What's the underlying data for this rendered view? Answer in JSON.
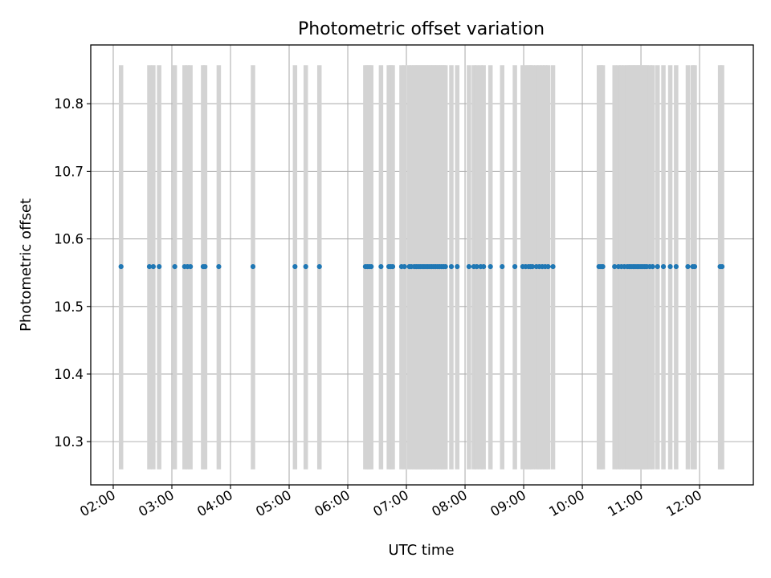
{
  "chart_data": {
    "type": "scatter",
    "title": "Photometric offset variation",
    "xlabel": "UTC time",
    "ylabel": "Photometric offset",
    "xlim": [
      "01:37",
      "12:55"
    ],
    "ylim": [
      10.236,
      10.887
    ],
    "x_ticks": [
      "02:00",
      "03:00",
      "04:00",
      "05:00",
      "06:00",
      "07:00",
      "08:00",
      "09:00",
      "10:00",
      "11:00",
      "12:00"
    ],
    "y_ticks": [
      10.3,
      10.4,
      10.5,
      10.6,
      10.7,
      10.8
    ],
    "grid": true,
    "error_bar_range": [
      10.259,
      10.857
    ],
    "colors": {
      "points": "#1f77b4",
      "error_bars": "#d3d3d3",
      "grid": "#b0b0b0"
    },
    "series": [
      {
        "y": 10.559,
        "x": [
          "02:08",
          "02:37",
          "02:41",
          "02:47",
          "03:03",
          "03:13",
          "03:16",
          "03:19",
          "03:32",
          "03:34",
          "03:48",
          "04:23",
          "05:06",
          "05:17",
          "05:31",
          "06:18",
          "06:20",
          "06:22",
          "06:24",
          "06:34",
          "06:42",
          "06:44",
          "06:46",
          "06:55",
          "06:58",
          "07:03",
          "07:05",
          "07:08",
          "07:10",
          "07:12",
          "07:14",
          "07:16",
          "07:18",
          "07:20",
          "07:22",
          "07:24",
          "07:26",
          "07:28",
          "07:30",
          "07:32",
          "07:34",
          "07:36",
          "07:38",
          "07:40",
          "07:46",
          "07:52",
          "08:04",
          "08:09",
          "08:12",
          "08:16",
          "08:19",
          "08:26",
          "08:38",
          "08:51",
          "08:59",
          "09:02",
          "09:05",
          "09:07",
          "09:09",
          "09:13",
          "09:16",
          "09:19",
          "09:22",
          "09:25",
          "09:30",
          "10:17",
          "10:19",
          "10:21",
          "10:33",
          "10:37",
          "10:40",
          "10:43",
          "10:46",
          "10:48",
          "10:50",
          "10:52",
          "10:54",
          "10:56",
          "10:58",
          "11:00",
          "11:02",
          "11:04",
          "11:06",
          "11:09",
          "11:12",
          "11:17",
          "11:23",
          "11:30",
          "11:36",
          "11:48",
          "11:53",
          "11:55",
          "12:21",
          "12:23"
        ]
      }
    ]
  }
}
